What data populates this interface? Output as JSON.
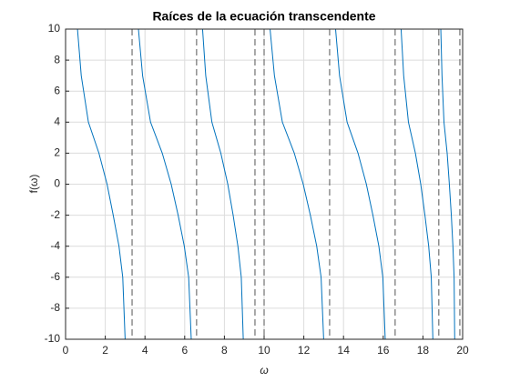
{
  "chart_data": {
    "type": "line",
    "title": "Raíces de la ecuación transcendente",
    "xlabel": "ω",
    "ylabel": "f(ω)",
    "xlim": [
      0,
      20
    ],
    "ylim": [
      -10,
      10
    ],
    "xticks": [
      0,
      2,
      4,
      6,
      8,
      10,
      12,
      14,
      16,
      18,
      20
    ],
    "yticks": [
      -10,
      -8,
      -6,
      -4,
      -2,
      0,
      2,
      4,
      6,
      8,
      10
    ],
    "grid": true,
    "series": [
      {
        "color": "#0072bd",
        "x": [
          0.6,
          0.79,
          1.15,
          1.68,
          2.09,
          2.4,
          2.69,
          2.88,
          3.0,
          null,
          3.67,
          3.88,
          4.28,
          4.87,
          5.32,
          5.67,
          5.98,
          6.2,
          6.33,
          null,
          6.9,
          7.06,
          7.37,
          7.82,
          8.17,
          8.44,
          8.68,
          8.85,
          8.95,
          null,
          10.3,
          10.52,
          10.92,
          11.52,
          11.97,
          12.33,
          12.65,
          12.87,
          13.0,
          null,
          13.6,
          13.8,
          14.18,
          14.73,
          15.15,
          15.48,
          15.78,
          15.98,
          16.1,
          null,
          16.9,
          17.03,
          17.27,
          17.62,
          17.89,
          18.1,
          18.29,
          18.42,
          18.5,
          null,
          18.9,
          18.96,
          19.06,
          19.22,
          19.33,
          19.43,
          19.51,
          19.57,
          19.6
        ],
        "values": [
          10,
          7,
          4,
          2,
          0,
          -2,
          -4,
          -6,
          -10,
          null,
          10,
          7,
          4,
          2,
          0,
          -2,
          -4,
          -6,
          -10,
          null,
          10,
          7,
          4,
          2,
          0,
          -2,
          -4,
          -6,
          -10,
          null,
          10,
          7,
          4,
          2,
          0,
          -2,
          -4,
          -6,
          -10,
          null,
          10,
          7,
          4,
          2,
          0,
          -2,
          -4,
          -6,
          -10,
          null,
          10,
          7,
          4,
          2,
          0,
          -2,
          -4,
          -6,
          -10,
          null,
          10,
          7,
          4,
          2,
          0,
          -2,
          -4,
          -6,
          -10
        ]
      }
    ],
    "vlines": {
      "color": "#555555",
      "x": [
        3.35,
        6.6,
        9.54,
        10.0,
        13.3,
        16.6,
        18.8,
        19.86
      ]
    }
  }
}
